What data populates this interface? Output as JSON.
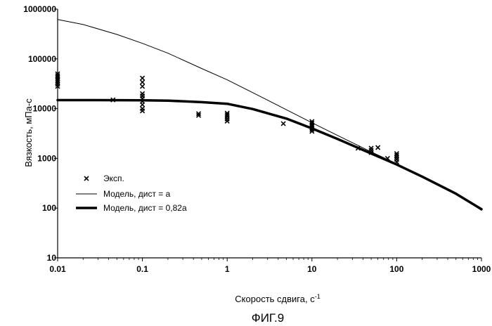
{
  "chart_data": {
    "type": "scatter",
    "x_scale": "log",
    "y_scale": "log",
    "xlim": [
      0.01,
      1000
    ],
    "ylim": [
      10,
      1000000
    ],
    "x_tick_labels": [
      "0.01",
      "0.1",
      "1",
      "10",
      "100",
      "1000"
    ],
    "y_tick_labels": [
      "10",
      "100",
      "1000",
      "10000",
      "100000",
      "1000000"
    ],
    "xlabel": "Скорость сдвига, с",
    "xlabel_sup": "-1",
    "ylabel": "Вязкость, мПа-с",
    "figure_caption": "ФИГ.9",
    "grid": false,
    "legend_position": "lower-left",
    "series": [
      {
        "name": "Эксп.",
        "kind": "markers",
        "marker": "x",
        "points": [
          [
            0.01,
            28000
          ],
          [
            0.01,
            31000
          ],
          [
            0.01,
            34000
          ],
          [
            0.01,
            37000
          ],
          [
            0.01,
            40000
          ],
          [
            0.01,
            43000
          ],
          [
            0.01,
            46000
          ],
          [
            0.01,
            50000
          ],
          [
            0.045,
            15000
          ],
          [
            0.1,
            9000
          ],
          [
            0.1,
            10000
          ],
          [
            0.1,
            12000
          ],
          [
            0.1,
            14000
          ],
          [
            0.1,
            16000
          ],
          [
            0.1,
            18000
          ],
          [
            0.1,
            20000
          ],
          [
            0.1,
            28000
          ],
          [
            0.1,
            34000
          ],
          [
            0.1,
            41000
          ],
          [
            0.46,
            7300
          ],
          [
            0.46,
            7900
          ],
          [
            1.0,
            5600
          ],
          [
            1.0,
            6200
          ],
          [
            1.0,
            6900
          ],
          [
            1.0,
            7500
          ],
          [
            1.0,
            8100
          ],
          [
            4.6,
            5000
          ],
          [
            10,
            3500
          ],
          [
            10,
            3800
          ],
          [
            10,
            4100
          ],
          [
            10,
            4400
          ],
          [
            10,
            4700
          ],
          [
            10,
            5100
          ],
          [
            10,
            5500
          ],
          [
            35,
            1600
          ],
          [
            50,
            1300
          ],
          [
            50,
            1450
          ],
          [
            50,
            1600
          ],
          [
            60,
            1650
          ],
          [
            78,
            1000
          ],
          [
            100,
            850
          ],
          [
            100,
            950
          ],
          [
            100,
            1050
          ],
          [
            100,
            1150
          ],
          [
            100,
            1250
          ]
        ]
      },
      {
        "name": "Модель, дист = a",
        "kind": "line",
        "stroke": "thin",
        "points": [
          [
            0.01,
            620000
          ],
          [
            0.02,
            490000
          ],
          [
            0.05,
            310000
          ],
          [
            0.1,
            205000
          ],
          [
            0.2,
            130000
          ],
          [
            0.5,
            64000
          ],
          [
            1,
            38000
          ],
          [
            2,
            21000
          ],
          [
            5,
            9500
          ],
          [
            10,
            5200
          ],
          [
            20,
            2900
          ],
          [
            50,
            1350
          ],
          [
            100,
            780
          ],
          [
            200,
            440
          ],
          [
            500,
            200
          ],
          [
            1000,
            90
          ]
        ]
      },
      {
        "name": "Модель, дист = 0,82a",
        "kind": "line",
        "stroke": "thick",
        "points": [
          [
            0.01,
            14800
          ],
          [
            0.03,
            14800
          ],
          [
            0.1,
            14700
          ],
          [
            0.2,
            14500
          ],
          [
            0.5,
            13500
          ],
          [
            1,
            12500
          ],
          [
            2,
            9800
          ],
          [
            5,
            6300
          ],
          [
            10,
            4000
          ],
          [
            20,
            2450
          ],
          [
            50,
            1250
          ],
          [
            100,
            750
          ],
          [
            200,
            430
          ],
          [
            500,
            195
          ],
          [
            1000,
            95
          ]
        ]
      }
    ]
  }
}
